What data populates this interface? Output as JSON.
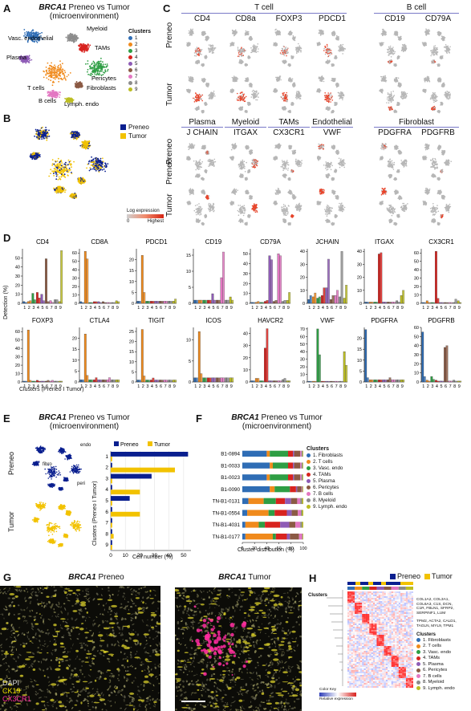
{
  "colors": {
    "c1": "#2f6db5",
    "c2": "#f08a1c",
    "c3": "#2e9e44",
    "c4": "#d8231f",
    "c5": "#8e5bb6",
    "c6": "#8b5a44",
    "c7": "#e377c2",
    "c8": "#8c8c8c",
    "c9": "#bcbd22",
    "preneo": "#0a1f8f",
    "tumor": "#f2c200",
    "umapgrey": "#b7b7b7",
    "expr": "#e8442a"
  },
  "panelA": {
    "label": "A",
    "title_gene": "BRCA1",
    "title_rest": " Preneo vs Tumor",
    "title_line2": "(microenvironment)",
    "legend_title": "Clusters",
    "clusters": [
      "1",
      "2",
      "3",
      "4",
      "5",
      "6",
      "7",
      "8",
      "9"
    ],
    "annotations": [
      "Vasc. endothelial",
      "Myeloid",
      "TAMs",
      "Plasma",
      "T cells",
      "Fibroblasts",
      "Pericytes",
      "B cells",
      "Lymph. endo"
    ]
  },
  "panelB": {
    "label": "B",
    "legend": [
      "Preneo",
      "Tumor"
    ]
  },
  "panelC": {
    "label": "C",
    "groups_top": [
      "T cell",
      "B cell"
    ],
    "genes_top": [
      "CD4",
      "CD8a",
      "FOXP3",
      "PDCD1",
      "CD19",
      "CD79A"
    ],
    "groups_bottom": [
      "Plasma",
      "Myeloid",
      "TAMs",
      "Endothelial",
      "Fibroblast"
    ],
    "genes_bottom": [
      "J CHAIN",
      "ITGAX",
      "CX3CR1",
      "VWF",
      "PDGFRA",
      "PDGFRB"
    ],
    "row_labels": [
      "Preneo",
      "Tumor",
      "Preneo",
      "Tumor"
    ],
    "colorbar_title": "Log expression",
    "colorbar_min": "0",
    "colorbar_max": "Highest"
  },
  "panelD": {
    "label": "D",
    "ylabel": "Detection (%)",
    "xlabel": "Clusters (Preneo I Tumor)",
    "xticks": [
      "1",
      "2",
      "3",
      "4",
      "5",
      "6",
      "7",
      "8",
      "9"
    ]
  },
  "panelE": {
    "label": "E",
    "title_gene": "BRCA1",
    "title_rest": " Preneo vs Tumor",
    "title_line2": "(microenvironment)",
    "umap_labels": [
      "endo",
      "fibro",
      "peri"
    ],
    "row_labels": [
      "Preneo",
      "Tumor"
    ],
    "legend": [
      "Preneo",
      "Tumor"
    ],
    "ylabel": "Clusters (Preneo I Tumor)",
    "xlabel": "Cell number (%)"
  },
  "panelF": {
    "label": "F",
    "title_gene": "BRCA1",
    "title_rest": " Preneo vs Tumor",
    "title_line2": "(microenvironment)",
    "xlabel": "Cluster distribution (%)",
    "legend_title": "Clusters",
    "legend": [
      "1. Fibroblasts",
      "2. T cells",
      "3. Vasc. endo",
      "4. TAMs",
      "5. Plasma",
      "6. Pericytes",
      "7. B cells",
      "8. Myeloid",
      "9. Lymph. endo"
    ]
  },
  "panelG": {
    "label": "G",
    "left_gene": "BRCA1",
    "left_rest": " Preneo",
    "right_gene": "BRCA1",
    "right_rest": " Tumor",
    "stains": [
      "DAPI",
      "CK19",
      "CX3CR1"
    ]
  },
  "panelH": {
    "label": "H",
    "legend": [
      "Preneo",
      "Tumor"
    ],
    "clusters_label": "Clusters",
    "gene_block1": "COL1A2, COL3A1,\nCOL6A3, C1S, DCN,\nC1R, FBLN1, SFRP2,\nSERPINF1, LUM",
    "gene_block2": "TPM2, ACTA2, CALD1,\nTAGLN, MYL9, TPM1",
    "legend_title": "Clusters",
    "legend_items": [
      "1. Fibroblasts",
      "2. T cells",
      "3. Vasc. endo",
      "4. TAMs",
      "5. Plasma",
      "6. Pericytes",
      "7. B cells",
      "8. Myeloid",
      "9. Lymph. endo"
    ],
    "color_key_title": "Color Key",
    "color_key_label": "Relative expression"
  },
  "chart_data": [
    {
      "type": "bar",
      "title": "CD4",
      "categories": [
        "1",
        "2",
        "3",
        "4",
        "5",
        "6",
        "7",
        "8",
        "9"
      ],
      "series": [
        {
          "values": [
            2,
            2,
            11,
            12,
            10,
            49,
            3,
            4,
            2
          ]
        },
        {
          "values": [
            1,
            3,
            4,
            6,
            3,
            2,
            1,
            4,
            58
          ]
        }
      ],
      "ylim": [
        0,
        60
      ],
      "yticks": [
        0,
        10,
        20,
        30,
        40,
        50
      ]
    },
    {
      "type": "bar",
      "title": "CD8A",
      "categories": [
        "1",
        "2",
        "3",
        "4",
        "5",
        "6",
        "7",
        "8",
        "9"
      ],
      "series": [
        {
          "values": [
            2,
            62,
            1,
            2,
            2,
            2,
            1,
            1,
            3
          ]
        },
        {
          "values": [
            1,
            53,
            1,
            2,
            1,
            1,
            1,
            1,
            2
          ]
        }
      ],
      "ylim": [
        0,
        65
      ],
      "yticks": [
        0,
        10,
        20,
        30,
        40,
        50,
        60
      ]
    },
    {
      "type": "bar",
      "title": "PDCD1",
      "categories": [
        "1",
        "2",
        "3",
        "4",
        "5",
        "6",
        "7",
        "8",
        "9"
      ],
      "series": [
        {
          "values": [
            1,
            22,
            1,
            1,
            1,
            1,
            1,
            1,
            1
          ]
        },
        {
          "values": [
            1,
            5,
            1,
            1,
            1,
            1,
            1,
            1,
            2
          ]
        }
      ],
      "ylim": [
        0,
        25
      ],
      "yticks": [
        0,
        5,
        10,
        15,
        20
      ]
    },
    {
      "type": "bar",
      "title": "CD19",
      "categories": [
        "1",
        "2",
        "3",
        "4",
        "5",
        "6",
        "7",
        "8",
        "9"
      ],
      "series": [
        {
          "values": [
            1,
            1,
            1,
            1,
            3,
            1,
            8,
            1,
            2
          ]
        },
        {
          "values": [
            1,
            1,
            1,
            1,
            1,
            1,
            16,
            1,
            1
          ]
        }
      ],
      "ylim": [
        0,
        17
      ],
      "yticks": [
        0,
        5,
        10,
        15
      ]
    },
    {
      "type": "bar",
      "title": "CD79A",
      "categories": [
        "1",
        "2",
        "3",
        "4",
        "5",
        "6",
        "7",
        "8",
        "9"
      ],
      "series": [
        {
          "values": [
            1,
            1,
            1,
            2,
            48,
            2,
            50,
            2,
            3
          ]
        },
        {
          "values": [
            1,
            2,
            1,
            3,
            44,
            3,
            48,
            3,
            11
          ]
        }
      ],
      "ylim": [
        0,
        55
      ],
      "yticks": [
        0,
        10,
        20,
        30,
        40,
        50
      ]
    },
    {
      "type": "bar",
      "title": "JCHAIN",
      "categories": [
        "1",
        "2",
        "3",
        "4",
        "5",
        "6",
        "7",
        "8",
        "9"
      ],
      "series": [
        {
          "values": [
            3,
            5,
            4,
            6,
            12,
            3,
            6,
            5,
            4
          ]
        },
        {
          "values": [
            6,
            8,
            5,
            12,
            34,
            6,
            10,
            40,
            14
          ]
        }
      ],
      "ylim": [
        0,
        42
      ],
      "yticks": [
        0,
        10,
        20,
        30,
        40
      ]
    },
    {
      "type": "bar",
      "title": "ITGAX",
      "categories": [
        "1",
        "2",
        "3",
        "4",
        "5",
        "6",
        "7",
        "8",
        "9"
      ],
      "series": [
        {
          "values": [
            1,
            1,
            1,
            38,
            1,
            1,
            1,
            2,
            6
          ]
        },
        {
          "values": [
            1,
            1,
            1,
            39,
            1,
            1,
            1,
            1,
            10
          ]
        }
      ],
      "ylim": [
        0,
        42
      ],
      "yticks": [
        0,
        10,
        20,
        30,
        40
      ]
    },
    {
      "type": "bar",
      "title": "CX3CR1",
      "categories": [
        "1",
        "2",
        "3",
        "4",
        "5",
        "6",
        "7",
        "8",
        "9"
      ],
      "series": [
        {
          "values": [
            1,
            3,
            1,
            62,
            1,
            1,
            1,
            1,
            3
          ]
        },
        {
          "values": [
            1,
            1,
            1,
            6,
            1,
            1,
            1,
            5,
            1
          ]
        }
      ],
      "ylim": [
        0,
        65
      ],
      "yticks": [
        0,
        10,
        20,
        30,
        40,
        50,
        60
      ]
    },
    {
      "type": "bar",
      "title": "FOXP3",
      "categories": [
        "1",
        "2",
        "3",
        "4",
        "5",
        "6",
        "7",
        "8",
        "9"
      ],
      "series": [
        {
          "values": [
            1,
            62,
            1,
            2,
            1,
            1,
            1,
            1,
            1
          ]
        },
        {
          "values": [
            1,
            2,
            1,
            1,
            1,
            2,
            2,
            1,
            1
          ]
        }
      ],
      "ylim": [
        0,
        65
      ],
      "yticks": [
        0,
        10,
        20,
        30,
        40,
        50,
        60
      ]
    },
    {
      "type": "bar",
      "title": "CTLA4",
      "categories": [
        "1",
        "2",
        "3",
        "4",
        "5",
        "6",
        "7",
        "8",
        "9"
      ],
      "series": [
        {
          "values": [
            1,
            22,
            1,
            1,
            1,
            1,
            1,
            1,
            1
          ]
        },
        {
          "values": [
            1,
            3,
            1,
            2,
            1,
            1,
            2,
            1,
            1
          ]
        }
      ],
      "ylim": [
        0,
        25
      ],
      "yticks": [
        0,
        5,
        10,
        15,
        20
      ]
    },
    {
      "type": "bar",
      "title": "TIGIT",
      "categories": [
        "1",
        "2",
        "3",
        "4",
        "5",
        "6",
        "7",
        "8",
        "9"
      ],
      "series": [
        {
          "values": [
            1,
            26,
            1,
            1,
            1,
            1,
            1,
            1,
            1
          ]
        },
        {
          "values": [
            1,
            3,
            1,
            2,
            1,
            1,
            1,
            1,
            1
          ]
        }
      ],
      "ylim": [
        0,
        27
      ],
      "yticks": [
        0,
        5,
        10,
        15,
        20,
        25
      ]
    },
    {
      "type": "bar",
      "title": "ICOS",
      "categories": [
        "1",
        "2",
        "3",
        "4",
        "5",
        "6",
        "7",
        "8",
        "9"
      ],
      "series": [
        {
          "values": [
            1,
            12,
            1,
            1,
            1,
            1,
            1,
            1,
            1
          ]
        },
        {
          "values": [
            1,
            2,
            1,
            1,
            1,
            1,
            1,
            1,
            1
          ]
        }
      ],
      "ylim": [
        0,
        13
      ],
      "yticks": [
        0,
        5,
        10
      ]
    },
    {
      "type": "bar",
      "title": "HAVCR2",
      "categories": [
        "1",
        "2",
        "3",
        "4",
        "5",
        "6",
        "7",
        "8",
        "9"
      ],
      "series": [
        {
          "values": [
            1,
            3,
            1,
            28,
            1,
            1,
            1,
            2,
            1
          ]
        },
        {
          "values": [
            1,
            3,
            1,
            44,
            1,
            1,
            1,
            3,
            1
          ]
        }
      ],
      "ylim": [
        0,
        45
      ],
      "yticks": [
        0,
        10,
        20,
        30,
        40
      ]
    },
    {
      "type": "bar",
      "title": "VWF",
      "categories": [
        "1",
        "2",
        "3",
        "4",
        "5",
        "6",
        "7",
        "8",
        "9"
      ],
      "series": [
        {
          "values": [
            1,
            1,
            70,
            1,
            1,
            1,
            1,
            1,
            40
          ]
        },
        {
          "values": [
            1,
            1,
            36,
            1,
            1,
            1,
            1,
            1,
            22
          ]
        }
      ],
      "ylim": [
        0,
        72
      ],
      "yticks": [
        0,
        10,
        20,
        30,
        40,
        50,
        60,
        70
      ]
    },
    {
      "type": "bar",
      "title": "PDGFRA",
      "categories": [
        "1",
        "2",
        "3",
        "4",
        "5",
        "6",
        "7",
        "8",
        "9"
      ],
      "series": [
        {
          "values": [
            24,
            1,
            1,
            1,
            1,
            1,
            1,
            1,
            1
          ]
        },
        {
          "values": [
            2,
            1,
            1,
            1,
            1,
            2,
            1,
            1,
            1
          ]
        }
      ],
      "ylim": [
        0,
        25
      ],
      "yticks": [
        0,
        5,
        10,
        15,
        20
      ]
    },
    {
      "type": "bar",
      "title": "PDGFRB",
      "categories": [
        "1",
        "2",
        "3",
        "4",
        "5",
        "6",
        "7",
        "8",
        "9"
      ],
      "series": [
        {
          "values": [
            55,
            2,
            6,
            2,
            1,
            38,
            1,
            2,
            1
          ]
        },
        {
          "values": [
            6,
            1,
            3,
            1,
            1,
            40,
            1,
            1,
            1
          ]
        }
      ],
      "ylim": [
        0,
        60
      ],
      "yticks": [
        0,
        10,
        20,
        30,
        40,
        50,
        60
      ]
    },
    {
      "type": "bar",
      "title": "",
      "categories": [
        "1",
        "2",
        "3",
        "4",
        "5",
        "6",
        "7",
        "8",
        "9"
      ],
      "series": [
        {
          "name": "Preneo",
          "values": [
            53,
            1,
            28,
            1,
            13,
            1,
            1,
            1,
            1
          ]
        },
        {
          "name": "Tumor",
          "values": [
            1,
            44,
            1,
            20,
            1,
            20,
            1,
            2,
            1
          ]
        }
      ],
      "xlabel": "Cell number (%)",
      "ylabel": "Clusters (Preneo I Tumor)",
      "xlim": [
        0,
        55
      ],
      "xticks": [
        0,
        10,
        20,
        30,
        40,
        50
      ],
      "legend": "top"
    },
    {
      "type": "bar",
      "title": "",
      "categories": [
        "B1-0894",
        "B1-0033",
        "B1-0023",
        "B1-0090",
        "TN-B1-0131",
        "TN-B1-0554",
        "TN-B1-4031",
        "TN-B1-0177"
      ],
      "series": [
        {
          "name": "1. Fibroblasts",
          "values": [
            40,
            45,
            40,
            45,
            10,
            8,
            5,
            5
          ]
        },
        {
          "name": "2. T cells",
          "values": [
            5,
            5,
            5,
            8,
            25,
            35,
            22,
            45
          ]
        },
        {
          "name": "3. Vasc. endo",
          "values": [
            30,
            25,
            30,
            25,
            20,
            10,
            10,
            5
          ]
        },
        {
          "name": "4. TAMs",
          "values": [
            8,
            8,
            8,
            10,
            15,
            20,
            25,
            18
          ]
        },
        {
          "name": "5. Plasma",
          "values": [
            2,
            2,
            2,
            2,
            10,
            8,
            15,
            5
          ]
        },
        {
          "name": "6. Pericytes",
          "values": [
            10,
            10,
            10,
            7,
            10,
            10,
            10,
            15
          ]
        },
        {
          "name": "7. B cells",
          "values": [
            2,
            2,
            2,
            1,
            5,
            5,
            8,
            5
          ]
        },
        {
          "name": "8. Myeloid",
          "values": [
            2,
            2,
            2,
            1,
            3,
            2,
            3,
            1
          ]
        },
        {
          "name": "9. Lymph. endo",
          "values": [
            1,
            1,
            1,
            1,
            2,
            2,
            2,
            1
          ]
        }
      ],
      "xlabel": "Cluster distribution (%)",
      "xlim": [
        0,
        100
      ],
      "xticks": [
        0,
        20,
        40,
        60,
        80,
        100
      ],
      "stacked": true
    }
  ]
}
